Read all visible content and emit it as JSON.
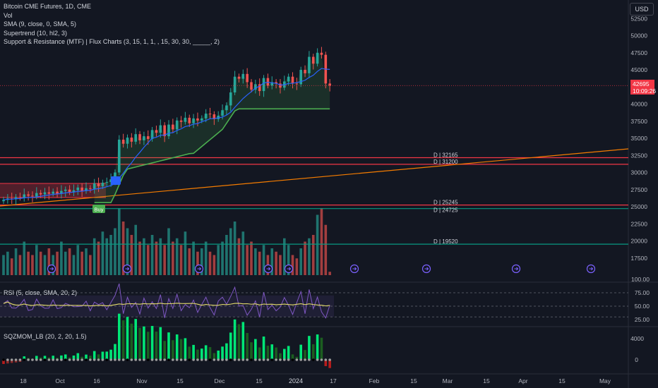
{
  "header": {
    "symbol_title": "Bitcoin CME Futures, 1D, CME",
    "indicators": [
      "Vol",
      "SMA (9, close, 0, SMA, 5)",
      "Supertrend (10, hl2, 3)",
      "Support & Resistance (MTF) | Flux Charts (3, 15, 1, 1, , 15, 30, 30, _____, 2)"
    ]
  },
  "currency": "USD",
  "last_price": {
    "value": "42695",
    "countdown": "10:09:26"
  },
  "rsi_pane": {
    "title": "RSI (5, close, SMA, 20, 2)"
  },
  "sqz_pane": {
    "title": "SQZMOM_LB (20, 2, 20, 1.5)"
  },
  "buy_label": "Buy",
  "colors": {
    "up": "#26a69a",
    "down": "#ef5350",
    "sma": "#2962ff",
    "supertrend": "#4caf50",
    "resistance": "#f23645",
    "support": "#089981",
    "trendline": "#f57c00",
    "rsi": "#7e57c2",
    "rsi_ma": "#e5dc6b",
    "sqz_up": "#00e676",
    "sqz_down": "#b71c1c"
  },
  "chart_data": {
    "type": "candlestick",
    "price_axis_ticks": [
      "52500",
      "50000",
      "47500",
      "45000",
      "42500",
      "40000",
      "37500",
      "35000",
      "32500",
      "30000",
      "27500",
      "25000",
      "22500",
      "20000",
      "17500"
    ],
    "rsi_axis_ticks": [
      "100.00",
      "75.00",
      "50.00",
      "25.00"
    ],
    "sqz_axis_ticks": [
      "4000",
      "0"
    ],
    "time_axis_ticks": [
      "18",
      "Oct",
      "16",
      "Nov",
      "15",
      "Dec",
      "15",
      "2024",
      "17",
      "Feb",
      "15",
      "Mar",
      "15",
      "Apr",
      "15",
      "May"
    ],
    "sr_levels": [
      {
        "label": "D | 32165",
        "price": 32165,
        "kind": "resistance"
      },
      {
        "label": "D | 31200",
        "price": 31200,
        "kind": "resistance"
      },
      {
        "label": "D | 25245",
        "price": 25245,
        "kind": "resistance"
      },
      {
        "label": "D | 24725",
        "price": 24725,
        "kind": "support"
      },
      {
        "label": "D | 19520",
        "price": 19520,
        "kind": "support"
      }
    ],
    "closes": [
      26000,
      26200,
      26100,
      26400,
      26300,
      26800,
      26600,
      26500,
      27000,
      26800,
      27100,
      26900,
      27200,
      26900,
      27300,
      27500,
      27100,
      27400,
      27800,
      27300,
      27700,
      27600,
      28400,
      28000,
      28500,
      28600,
      29000,
      30000,
      34800,
      34200,
      35100,
      34500,
      35600,
      34700,
      35300,
      34900,
      36200,
      35800,
      36900,
      35300,
      37000,
      36300,
      37600,
      37400,
      38000,
      37200,
      37900,
      37600,
      37900,
      38600,
      38500,
      37800,
      38300,
      39100,
      39800,
      41700,
      44000,
      43700,
      44400,
      43200,
      42100,
      42900,
      41900,
      43800,
      42700,
      43200,
      43000,
      42400,
      43300,
      44000,
      43000,
      42900,
      45000,
      44500,
      46900,
      45900,
      47500,
      47200,
      43000,
      42695
    ],
    "volume_relative": [
      0.3,
      0.35,
      0.25,
      0.4,
      0.3,
      0.5,
      0.35,
      0.3,
      0.45,
      0.35,
      0.3,
      0.4,
      0.3,
      0.35,
      0.5,
      0.35,
      0.4,
      0.3,
      0.45,
      0.35,
      0.4,
      0.3,
      0.55,
      0.5,
      0.65,
      0.55,
      0.6,
      0.7,
      1.0,
      0.8,
      0.7,
      0.6,
      0.75,
      0.5,
      0.55,
      0.45,
      0.6,
      0.5,
      0.55,
      0.45,
      0.7,
      0.5,
      0.55,
      0.45,
      0.65,
      0.4,
      0.5,
      0.35,
      0.4,
      0.5,
      0.35,
      0.3,
      0.45,
      0.5,
      0.6,
      0.7,
      0.8,
      0.55,
      0.65,
      0.45,
      0.5,
      0.4,
      0.35,
      0.45,
      0.3,
      0.4,
      0.35,
      0.3,
      0.55,
      0.45,
      0.3,
      0.25,
      0.4,
      0.5,
      0.55,
      0.6,
      0.9,
      1.0,
      0.75,
      0.05
    ]
  }
}
